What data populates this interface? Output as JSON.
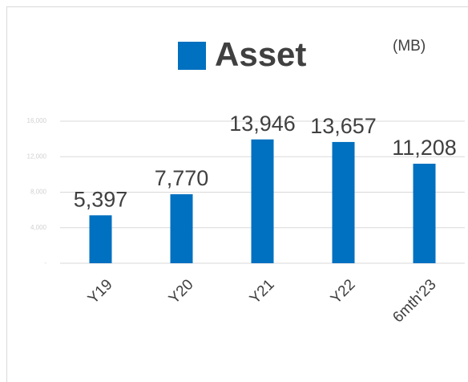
{
  "chart_data": {
    "type": "bar",
    "series": [
      {
        "name": "Asset",
        "color": "#0070c0",
        "values": [
          5397,
          7770,
          13946,
          13657,
          11208
        ],
        "value_labels": [
          "5,397",
          "7,770",
          "13,946",
          "13,657",
          "11,208"
        ]
      }
    ],
    "categories": [
      "Y19",
      "Y20",
      "Y21",
      "Y22",
      "6mth'23"
    ],
    "annotation": "(MB)",
    "ylim": [
      0,
      16000
    ],
    "yticks": [
      {
        "value": 0,
        "label": "-"
      },
      {
        "value": 4000,
        "label": "4,000"
      },
      {
        "value": 8000,
        "label": "8,000"
      },
      {
        "value": 12000,
        "label": "12,000"
      },
      {
        "value": 16000,
        "label": "16,000"
      }
    ],
    "grid": true
  }
}
